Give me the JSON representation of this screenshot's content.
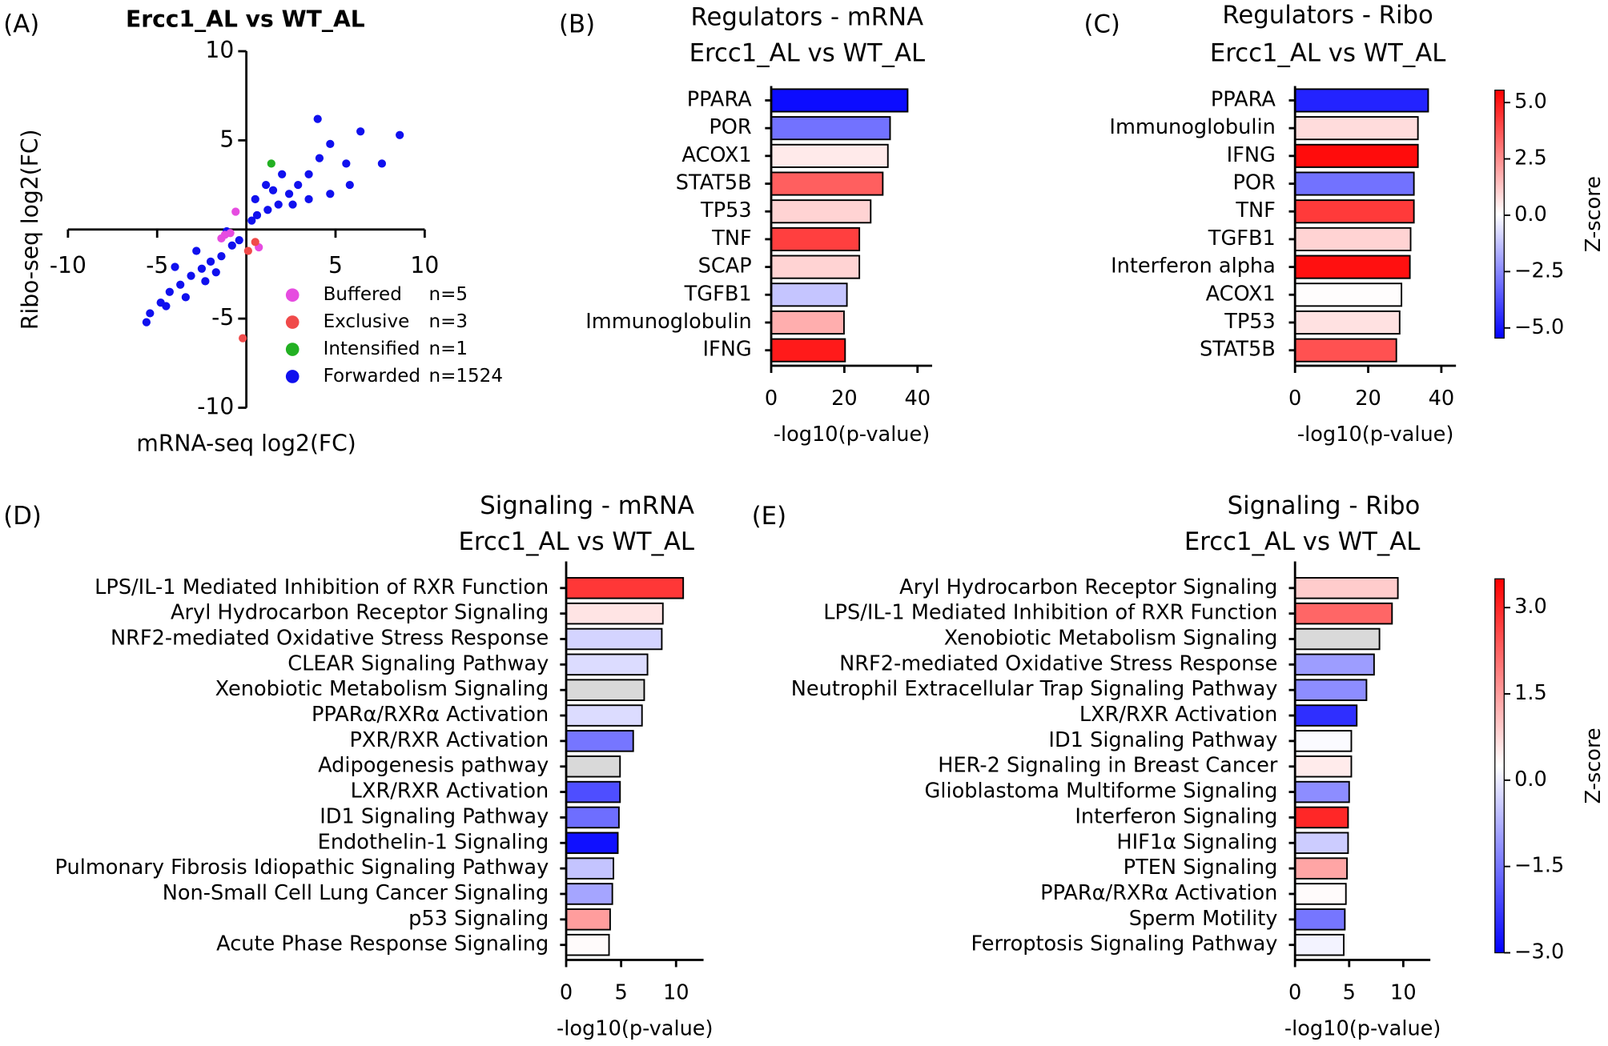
{
  "chart_data": [
    {
      "type": "scatter",
      "panel_label": "(A)",
      "title": "Ercc1_AL vs WT_AL",
      "x_label": "mRNA-seq log2(FC)",
      "y_label": "Ribo-seq log2(FC)",
      "xlim": [
        -10,
        10
      ],
      "ylim": [
        -10,
        10
      ],
      "xticks": [
        {
          "value": -10,
          "label": "-10"
        },
        {
          "value": -5,
          "label": "-5"
        },
        5,
        10
      ],
      "yticks": [
        {
          "value": -10,
          "label": "-10"
        },
        {
          "value": -5,
          "label": "-5"
        },
        5,
        10
      ],
      "series": [
        {
          "name": "Buffered",
          "legend_note": "n=5",
          "color": "#e64ce0",
          "x": [
            -0.6,
            -1.2,
            -1.4,
            0.7,
            -0.9
          ],
          "y": [
            1.0,
            -0.3,
            -0.5,
            -1.0,
            -0.2
          ]
        },
        {
          "name": "Exclusive",
          "legend_note": "n=3",
          "color": "#f04a4a",
          "x": [
            0.5,
            0.1,
            -0.2
          ],
          "y": [
            -0.7,
            -1.2,
            -6.1
          ]
        },
        {
          "name": "Intensified",
          "legend_note": "n=1",
          "color": "#22b022",
          "x": [
            1.4
          ],
          "y": [
            3.7
          ]
        },
        {
          "name": "Forwarded",
          "legend_note": "n=1524",
          "color": "#1010ee",
          "x": [
            8.6,
            7.6,
            6.4,
            4.0,
            4.7,
            5.6,
            3.5,
            2.9,
            2.4,
            1.8,
            1.2,
            0.6,
            0.3,
            2.6,
            3.5,
            4.7,
            5.8,
            4.1,
            2.0,
            1.5,
            -0.4,
            -0.8,
            -1.4,
            -2.0,
            -2.5,
            -3.1,
            -3.7,
            -4.3,
            -4.8,
            -5.4,
            -5.6,
            -4.5,
            -3.4,
            -2.3,
            -2.8,
            -4.0,
            -1.7,
            -1.1,
            0.5,
            1.1
          ],
          "y": [
            5.3,
            3.7,
            5.5,
            6.2,
            4.8,
            3.7,
            3.1,
            2.5,
            2.0,
            1.4,
            1.1,
            0.8,
            0.5,
            1.4,
            1.7,
            2.0,
            2.5,
            4.0,
            3.1,
            2.2,
            -0.6,
            -0.9,
            -1.5,
            -1.8,
            -2.2,
            -2.6,
            -3.1,
            -3.5,
            -4.1,
            -4.7,
            -5.2,
            -4.3,
            -3.8,
            -2.9,
            -1.2,
            -2.1,
            -2.4,
            -0.1,
            1.7,
            2.5
          ]
        }
      ]
    },
    {
      "type": "barh",
      "panel_label": "(B)",
      "title": "Regulators - mRNA",
      "subtitle": "Ercc1_AL vs WT_AL",
      "x_label": "-log10(p-value)",
      "xlim": [
        0,
        44
      ],
      "xticks": [
        0,
        20,
        40
      ],
      "categories": [
        "PPARA",
        "POR",
        "ACOX1",
        "STAT5B",
        "TP53",
        "TNF",
        "SCAP",
        "TGFB1",
        "Immunoglobulin",
        "IFNG"
      ],
      "values": [
        37.3,
        32.5,
        31.9,
        30.5,
        27.2,
        24.1,
        24.1,
        20.7,
        19.9,
        20.2
      ],
      "zscores": [
        -5.2,
        -3.0,
        0.5,
        3.5,
        1.0,
        4.2,
        1.0,
        -1.2,
        1.8,
        5.0
      ]
    },
    {
      "type": "barh",
      "panel_label": "(C)",
      "title": "Regulators - Ribo",
      "subtitle": "Ercc1_AL vs WT_AL",
      "x_label": "-log10(p-value)",
      "xlim": [
        0,
        44
      ],
      "xticks": [
        0,
        20,
        40
      ],
      "categories": [
        "PPARA",
        "Immunoglobulin",
        "IFNG",
        "POR",
        "TNF",
        "TGFB1",
        "Interferon alpha",
        "ACOX1",
        "TP53",
        "STAT5B"
      ],
      "values": [
        36.4,
        33.6,
        33.6,
        32.5,
        32.5,
        31.6,
        31.4,
        29.1,
        28.6,
        27.7
      ],
      "zscores": [
        -4.7,
        0.8,
        5.3,
        -3.0,
        4.3,
        1.0,
        5.2,
        0.1,
        0.7,
        3.8
      ],
      "colorbar": {
        "label": "Z-score",
        "lim": [
          -5.45,
          5.55
        ],
        "ticks": [
          {
            "value": 5,
            "label": "5.0"
          },
          2.5,
          {
            "value": 0,
            "label": "0.0"
          },
          {
            "value": -2.5,
            "label": "−2.5"
          },
          {
            "value": -5,
            "label": "−5.0"
          }
        ]
      }
    },
    {
      "type": "barh",
      "panel_label": "(D)",
      "title": "Signaling - mRNA",
      "subtitle": "Ercc1_AL vs WT_AL",
      "x_label": "-log10(p-value)",
      "xlim": [
        0,
        12.5
      ],
      "xticks": [
        0,
        5,
        10
      ],
      "categories": [
        "LPS/IL-1 Mediated Inhibition of RXR Function",
        "Aryl Hydrocarbon Receptor Signaling",
        "NRF2-mediated Oxidative Stress Response",
        "CLEAR Signaling Pathway",
        "Xenobiotic Metabolism Signaling",
        "PPARα/RXRα Activation",
        "PXR/RXR Activation",
        "Adipogenesis pathway",
        "LXR/RXR Activation",
        "ID1 Signaling Pathway",
        "Endothelin-1 Signaling",
        "Pulmonary Fibrosis Idiopathic Signaling Pathway",
        "Non-Small Cell Lung Cancer Signaling",
        "p53 Signaling",
        "Acute Phase Response Signaling"
      ],
      "values": [
        10.65,
        8.8,
        8.7,
        7.4,
        7.1,
        6.9,
        6.1,
        4.9,
        4.9,
        4.8,
        4.7,
        4.3,
        4.2,
        4.0,
        3.9
      ],
      "zscores": [
        2.8,
        0.6,
        -0.3,
        -0.2,
        null,
        -0.2,
        -1.5,
        null,
        -2.0,
        -1.6,
        -2.8,
        -0.5,
        -0.9,
        1.5,
        0.3
      ]
    },
    {
      "type": "barh",
      "panel_label": "(E)",
      "title": "Signaling - Ribo",
      "subtitle": "Ercc1_AL vs WT_AL",
      "x_label": "-log10(p-value)",
      "xlim": [
        0,
        12.5
      ],
      "xticks": [
        0,
        5,
        10
      ],
      "categories": [
        "Aryl Hydrocarbon Receptor Signaling",
        "LPS/IL-1 Mediated Inhibition of RXR Function",
        "Xenobiotic Metabolism Signaling",
        "NRF2-mediated Oxidative Stress Response",
        "Neutrophil Extracellular Trap Signaling Pathway",
        "LXR/RXR Activation",
        "ID1 Signaling Pathway",
        "HER-2 Signaling in Breast Cancer",
        "Glioblastoma Multiforme Signaling",
        "Interferon Signaling",
        "HIF1α Signaling",
        "PTEN Signaling",
        "PPARα/RXRα Activation",
        "Sperm Motility",
        "Ferroptosis Signaling Pathway"
      ],
      "values": [
        9.5,
        8.96,
        7.8,
        7.3,
        6.6,
        5.7,
        5.2,
        5.2,
        5.0,
        4.9,
        4.9,
        4.8,
        4.7,
        4.6,
        4.5
      ],
      "zscores": [
        0.9,
        2.2,
        null,
        -1.0,
        -1.2,
        -2.4,
        0.2,
        0.5,
        -1.2,
        3.0,
        -0.4,
        1.4,
        0.3,
        -1.5,
        0.1
      ],
      "colorbar": {
        "label": "Z-score",
        "lim": [
          -3.0,
          3.5
        ],
        "ticks": [
          {
            "value": 3,
            "label": "3.0"
          },
          1.5,
          {
            "value": 0,
            "label": "0.0"
          },
          {
            "value": -1.5,
            "label": "−1.5"
          },
          {
            "value": -3,
            "label": "−3.0"
          }
        ]
      }
    }
  ]
}
